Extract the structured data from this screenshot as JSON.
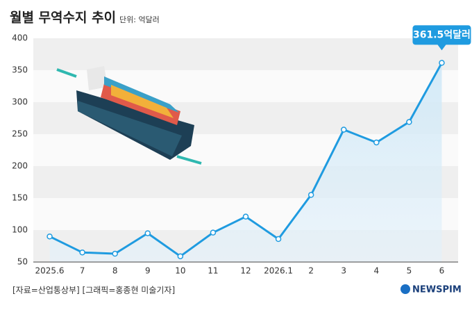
{
  "chart_data": {
    "type": "line",
    "title": "월별 무역수지 추이",
    "subtitle": "단위: 억달러",
    "categories": [
      "2025.6",
      "7",
      "8",
      "9",
      "10",
      "11",
      "12",
      "2026.1",
      "2",
      "3",
      "4",
      "5",
      "6"
    ],
    "values": [
      90,
      65,
      63,
      95,
      59,
      96,
      121,
      86,
      155,
      257,
      237,
      269,
      361.5
    ],
    "value_labels": [
      null,
      null,
      null,
      null,
      null,
      null,
      null,
      null,
      null,
      null,
      null,
      null,
      "361.5억달러"
    ],
    "color": "#1f9be0",
    "ylim": [
      50,
      400
    ],
    "yticks": [
      50,
      100,
      150,
      200,
      250,
      300,
      350,
      400
    ],
    "grid": true,
    "source": "[자료=산업통상부] [그래픽=홍종현 미술기자]",
    "logo": "NEWSPIM"
  }
}
